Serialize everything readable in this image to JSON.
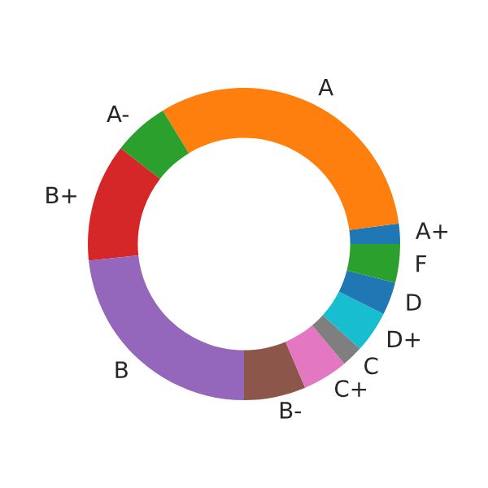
{
  "chart_data": {
    "type": "donut",
    "categories": [
      "A+",
      "A",
      "A-",
      "B+",
      "B",
      "B-",
      "C+",
      "C",
      "D+",
      "D",
      "F"
    ],
    "values": [
      2.1,
      31.6,
      5.8,
      12.2,
      23.3,
      6.4,
      4.7,
      2.2,
      4.3,
      3.4,
      4.0
    ],
    "colors": [
      "#1f77b4",
      "#ff7f0e",
      "#2ca02c",
      "#d62728",
      "#9467bd",
      "#8c564b",
      "#e377c2",
      "#7f7f7f",
      "#17becf",
      "#1f77b4",
      "#2ca02c"
    ]
  }
}
